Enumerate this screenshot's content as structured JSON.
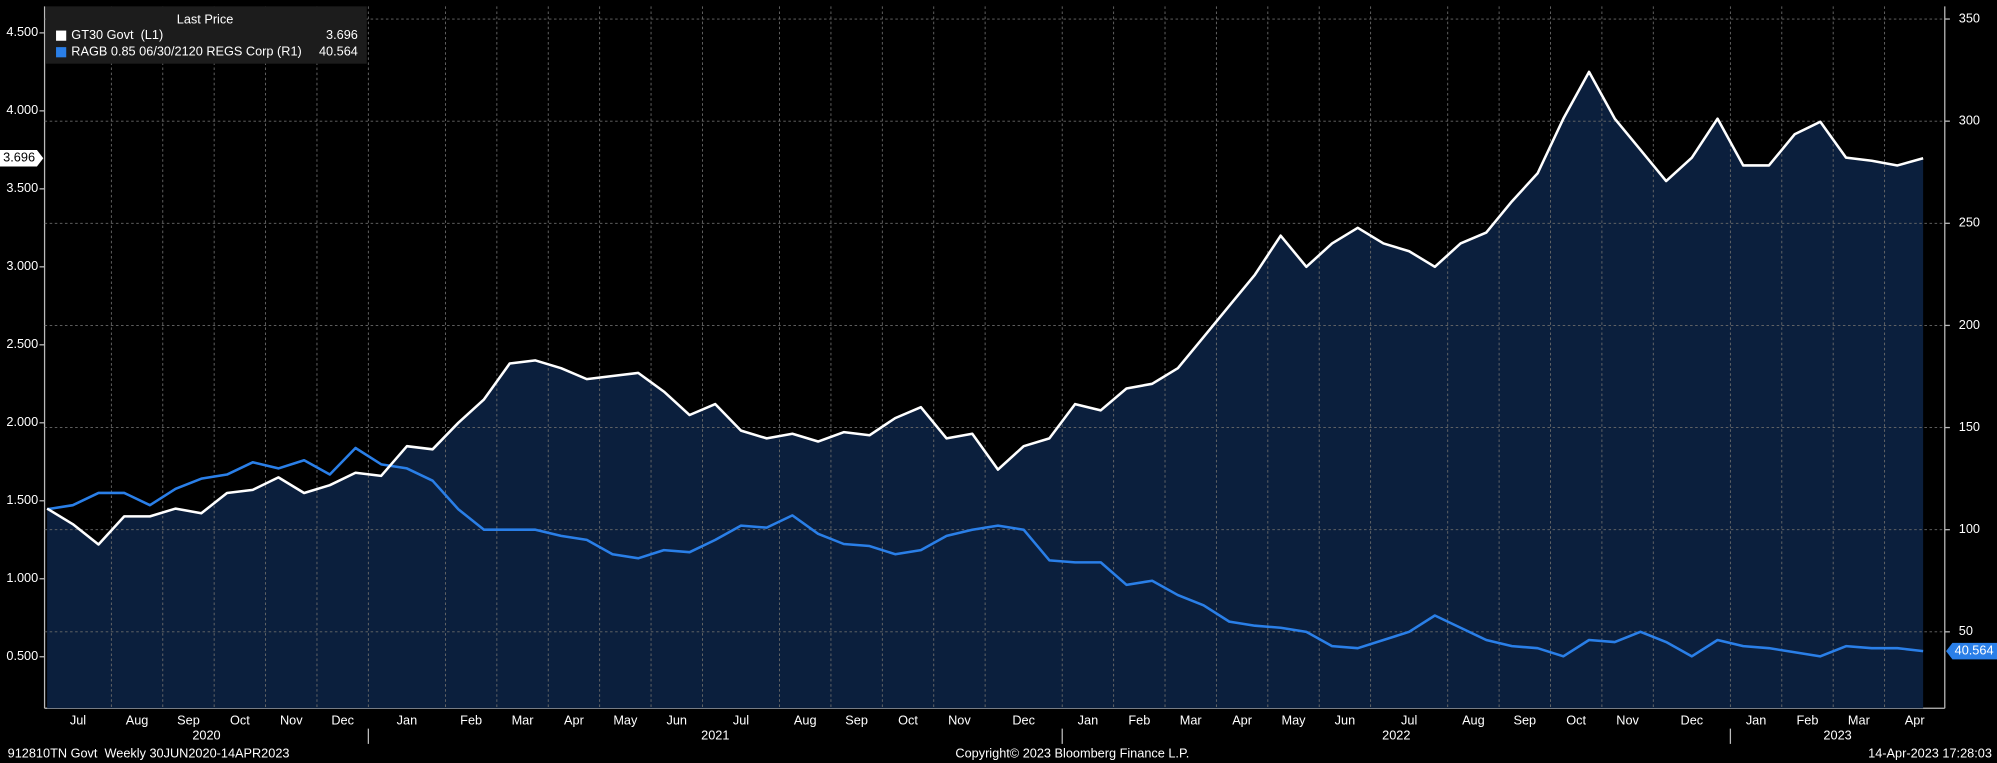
{
  "chart_data": {
    "type": "line",
    "legend_title": "Last Price",
    "categories": [
      "Jul",
      null,
      null,
      "Aug",
      null,
      "Sep",
      null,
      "Oct",
      null,
      "Nov",
      null,
      "Dec",
      null,
      "Jan",
      null,
      null,
      "Feb",
      null,
      "Mar",
      null,
      "Apr",
      null,
      "May",
      null,
      "Jun",
      null,
      "Jul",
      null,
      null,
      "Aug",
      null,
      "Sep",
      null,
      "Oct",
      null,
      "Nov",
      null,
      "Dec",
      null,
      null,
      "Jan",
      null,
      "Feb",
      null,
      "Mar",
      null,
      "Apr",
      null,
      "May",
      null,
      "Jun",
      null,
      "Jul",
      null,
      null,
      "Aug",
      null,
      "Sep",
      null,
      "Oct",
      null,
      "Nov",
      null,
      "Dec",
      null,
      null,
      "Jan",
      null,
      "Feb",
      null,
      "Mar",
      null,
      "Apr",
      null
    ],
    "years": [
      "2020",
      "2021",
      "2022",
      "2023"
    ],
    "series": [
      {
        "name": "GT30 Govt  (L1)",
        "color": "#ffffff",
        "axis": "y",
        "values": [
          1.45,
          1.35,
          1.22,
          1.4,
          1.4,
          1.45,
          1.42,
          1.55,
          1.57,
          1.65,
          1.55,
          1.6,
          1.68,
          1.66,
          1.85,
          1.83,
          2.0,
          2.15,
          2.38,
          2.4,
          2.35,
          2.28,
          2.3,
          2.32,
          2.2,
          2.05,
          2.12,
          1.95,
          1.9,
          1.93,
          1.88,
          1.94,
          1.92,
          2.03,
          2.1,
          1.9,
          1.93,
          1.7,
          1.85,
          1.9,
          2.12,
          2.08,
          2.22,
          2.25,
          2.35,
          2.55,
          2.75,
          2.95,
          3.2,
          3.0,
          3.15,
          3.25,
          3.15,
          3.1,
          3.0,
          3.15,
          3.22,
          3.42,
          3.6,
          3.95,
          4.25,
          3.95,
          3.75,
          3.55,
          3.7,
          3.95,
          3.65,
          3.65,
          3.85,
          3.93,
          3.7,
          3.68,
          3.65,
          3.696
        ]
      },
      {
        "name": "RAGB 0.85 06/30/2120 REGS Corp (R1)",
        "color": "#2a7fe8",
        "axis": "y2",
        "values": [
          110,
          112,
          118,
          118,
          112,
          120,
          125,
          127,
          133,
          130,
          134,
          127,
          140,
          132,
          130,
          124,
          110,
          100,
          100,
          100,
          97,
          95,
          88,
          86,
          90,
          89,
          95,
          102,
          101,
          107,
          98,
          93,
          92,
          88,
          90,
          97,
          100,
          102,
          100,
          85,
          84,
          84,
          73,
          75,
          68,
          63,
          55,
          53,
          52,
          50,
          43,
          42,
          46,
          50,
          58,
          52,
          46,
          43,
          42,
          38,
          46,
          45,
          50,
          45,
          38,
          46,
          43,
          42,
          40,
          38,
          43,
          42,
          42,
          40.564
        ]
      }
    ],
    "ylim": [
      0.17,
      4.67
    ],
    "yticks": [
      {
        "value": 0.5,
        "label": "0.500"
      },
      {
        "value": 1.0,
        "label": "1.000"
      },
      {
        "value": 1.5,
        "label": "1.500"
      },
      {
        "value": 2.0,
        "label": "2.000"
      },
      {
        "value": 2.5,
        "label": "2.500"
      },
      {
        "value": 3.0,
        "label": "3.000"
      },
      {
        "value": 3.5,
        "label": "3.500"
      },
      {
        "value": 4.0,
        "label": "4.000"
      },
      {
        "value": 4.5,
        "label": "4.500"
      }
    ],
    "y2lim": [
      12.6,
      356.2
    ],
    "y2ticks": [
      50,
      100,
      150,
      200,
      250,
      300,
      350
    ],
    "grid": true,
    "footer_left": "912810TN Govt  Weekly 30JUN2020-14APR2023",
    "footer_center": "Copyright© 2023 Bloomberg Finance L.P.",
    "footer_right": "14-Apr-2023 17:28:03"
  }
}
